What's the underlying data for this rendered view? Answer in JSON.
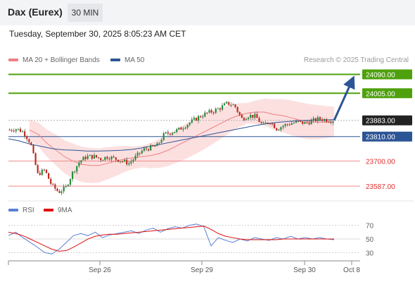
{
  "header": {
    "title": "Dax (Eurex)",
    "timeframe": "30 MIN"
  },
  "datetime": "Tuesday, September 30, 2025 8:05:23 AM CET",
  "legend": {
    "ma20": {
      "label": "MA 20 + Bollinger Bands",
      "color": "#f08080"
    },
    "ma50": {
      "label": "MA 50",
      "color": "#2c5596"
    }
  },
  "credit": "Research © 2025 Trading Central",
  "rsi_legend": {
    "rsi": {
      "label": "RSI",
      "color": "#5a7fd6"
    },
    "ma9": {
      "label": "9MA",
      "color": "#e01010"
    }
  },
  "chart_data": [
    {
      "type": "candlestick",
      "title": "",
      "ylim": [
        23530,
        24120
      ],
      "x_ticks": [
        "Sep 26",
        "Sep 29",
        "Sep 30",
        "Oct 8"
      ],
      "current_price": "23883.00",
      "levels": [
        {
          "label": "24090.00",
          "value": 24090,
          "kind": "target"
        },
        {
          "label": "24005.00",
          "value": 24005,
          "kind": "target"
        },
        {
          "label": "23883.00",
          "value": 23883,
          "kind": "current"
        },
        {
          "label": "23810.00",
          "value": 23810,
          "kind": "pivot"
        },
        {
          "label": "23700.00",
          "value": 23700,
          "kind": "support"
        },
        {
          "label": "23587.00",
          "value": 23587,
          "kind": "support"
        }
      ],
      "price_path": [
        23840,
        23845,
        23830,
        23780,
        23640,
        23660,
        23590,
        23560,
        23580,
        23650,
        23700,
        23720,
        23720,
        23710,
        23720,
        23710,
        23700,
        23690,
        23720,
        23750,
        23760,
        23770,
        23820,
        23830,
        23840,
        23860,
        23880,
        23900,
        23915,
        23925,
        23940,
        23960,
        23950,
        23890,
        23905,
        23900,
        23860,
        23880,
        23845,
        23860,
        23870,
        23875,
        23870,
        23880,
        23890,
        23885,
        23883
      ],
      "ma20": [
        23840,
        23820,
        23780,
        23750,
        23720,
        23700,
        23685,
        23680,
        23680,
        23690,
        23700,
        23710,
        23715,
        23720,
        23725,
        23735,
        23750,
        23770,
        23790,
        23810,
        23830,
        23850,
        23870,
        23890,
        23905,
        23915,
        23920,
        23920,
        23910,
        23905,
        23895,
        23885,
        23878,
        23875,
        23875,
        23877
      ],
      "ma50": [
        23800,
        23790,
        23775,
        23765,
        23755,
        23750,
        23748,
        23745,
        23745,
        23746,
        23748,
        23752,
        23760,
        23770,
        23780,
        23790,
        23800,
        23810,
        23820,
        23830,
        23840,
        23850,
        23860,
        23868,
        23874,
        23878,
        23882,
        23884,
        23885,
        23886
      ],
      "forecast_arrow": {
        "from": 23883,
        "to": 24090
      }
    },
    {
      "type": "line",
      "title": "RSI",
      "ylim": [
        20,
        80
      ],
      "y_ticks": [
        70,
        50,
        30
      ],
      "series": [
        {
          "name": "RSI",
          "values": [
            55,
            60,
            52,
            45,
            38,
            30,
            28,
            35,
            45,
            55,
            58,
            55,
            60,
            52,
            56,
            58,
            60,
            62,
            58,
            63,
            66,
            60,
            65,
            68,
            66,
            70,
            72,
            68,
            40,
            52,
            48,
            45,
            50,
            47,
            52,
            50,
            48,
            52,
            50,
            54,
            50,
            52,
            50,
            52,
            50,
            49
          ]
        },
        {
          "name": "9MA",
          "values": [
            60,
            58,
            55,
            50,
            45,
            40,
            35,
            32,
            33,
            38,
            44,
            50,
            54,
            56,
            57,
            57,
            58,
            59,
            60,
            61,
            62,
            63,
            64,
            65,
            66,
            67,
            68,
            69,
            64,
            58,
            54,
            52,
            50,
            49,
            49,
            49,
            49,
            49,
            50,
            50,
            50,
            50,
            50,
            50,
            50,
            50
          ]
        }
      ]
    }
  ]
}
